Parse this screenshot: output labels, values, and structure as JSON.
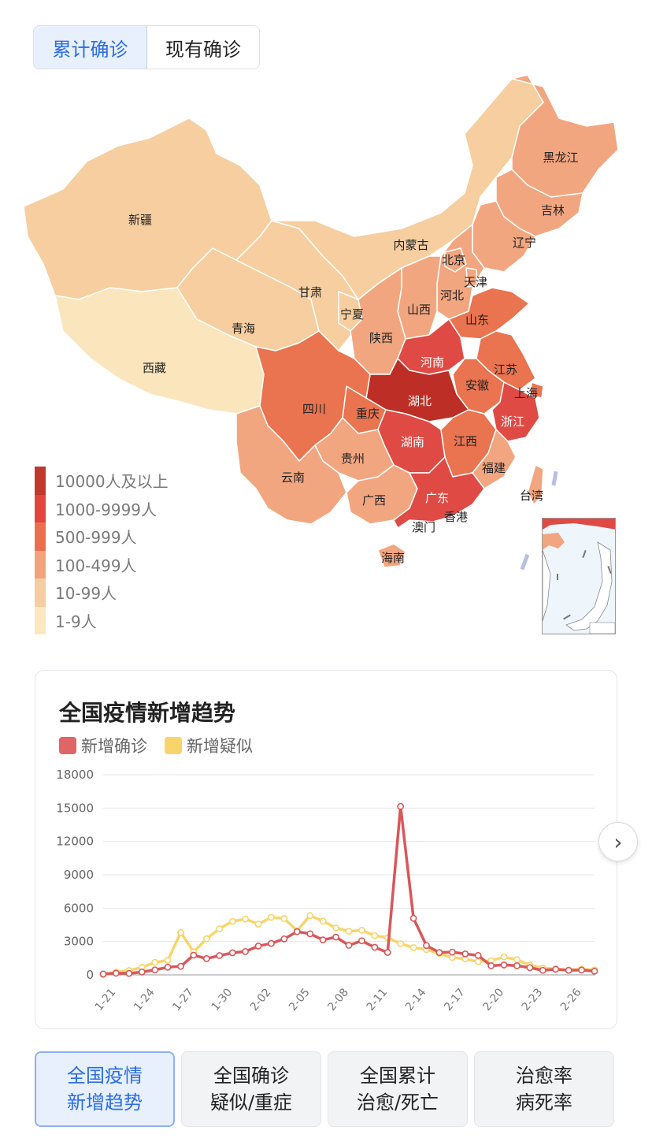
{
  "tabs": [
    {
      "label": "累计确诊",
      "active": true
    },
    {
      "label": "现有确诊",
      "active": false
    }
  ],
  "map": {
    "provinces": {
      "xinjiang": "新疆",
      "xizang": "西藏",
      "qinghai": "青海",
      "gansu": "甘肃",
      "neimenggu": "内蒙古",
      "heilongjiang": "黑龙江",
      "jilin": "吉林",
      "liaoning": "辽宁",
      "beijing": "北京",
      "tianjin": "天津",
      "hebei": "河北",
      "shanxi": "山西",
      "ningxia": "宁夏",
      "shaanxi": "陕西",
      "shandong": "山东",
      "henan": "河南",
      "jiangsu": "江苏",
      "anhui": "安徽",
      "shanghai": "上海",
      "hubei": "湖北",
      "sichuan": "四川",
      "chongqing": "重庆",
      "zhejiang": "浙江",
      "hunan": "湖南",
      "jiangxi": "江西",
      "guizhou": "贵州",
      "yunnan": "云南",
      "fujian": "福建",
      "taiwan": "台湾",
      "guangxi": "广西",
      "guangdong": "广东",
      "xianggang": "香港",
      "aomen": "澳门",
      "hainan": "海南"
    },
    "colors": {
      "c1": "#fbe5bd",
      "c2": "#f6cea0",
      "c3": "#f2a680",
      "c4": "#ea7350",
      "c5": "#e04a45",
      "c6": "#bd2f26"
    },
    "legend": [
      {
        "label": "10000人及以上",
        "color": "#c0392b"
      },
      {
        "label": "1000-9999人",
        "color": "#e2453c"
      },
      {
        "label": "500-999人",
        "color": "#ec6f4d"
      },
      {
        "label": "100-499人",
        "color": "#f2a37c"
      },
      {
        "label": "10-99人",
        "color": "#f6cca1"
      },
      {
        "label": "1-9人",
        "color": "#fce8bf"
      }
    ]
  },
  "card": {
    "title": "全国疫情新增趋势",
    "legend": [
      {
        "label": "新增确诊",
        "color": "#e06666"
      },
      {
        "label": "新增疑似",
        "color": "#f8d56b"
      }
    ]
  },
  "chart_data": {
    "type": "line",
    "title": "全国疫情新增趋势",
    "ylim": [
      0,
      18000
    ],
    "yticks": [
      0,
      3000,
      6000,
      9000,
      12000,
      15000,
      18000
    ],
    "xtick_labels": [
      "1-21",
      "1-24",
      "1-27",
      "1-30",
      "2-02",
      "2-05",
      "2-08",
      "2-11",
      "2-14",
      "2-17",
      "2-20",
      "2-23",
      "2-26"
    ],
    "x": [
      "1-20",
      "1-21",
      "1-22",
      "1-23",
      "1-24",
      "1-25",
      "1-26",
      "1-27",
      "1-28",
      "1-29",
      "1-30",
      "1-31",
      "2-01",
      "2-02",
      "2-03",
      "2-04",
      "2-05",
      "2-06",
      "2-07",
      "2-08",
      "2-09",
      "2-10",
      "2-11",
      "2-12",
      "2-13",
      "2-14",
      "2-15",
      "2-16",
      "2-17",
      "2-18",
      "2-19",
      "2-20",
      "2-21",
      "2-22",
      "2-23",
      "2-24",
      "2-25",
      "2-26",
      "2-27"
    ],
    "series": [
      {
        "name": "新增确诊",
        "color": "#d9575b",
        "values": [
          77,
          149,
          131,
          259,
          444,
          688,
          769,
          1771,
          1459,
          1737,
          1982,
          2102,
          2590,
          2829,
          3235,
          3887,
          3694,
          3143,
          3399,
          2656,
          3062,
          2478,
          2015,
          15152,
          5090,
          2641,
          2009,
          2048,
          1886,
          1749,
          820,
          892,
          826,
          648,
          409,
          508,
          406,
          433,
          327
        ]
      },
      {
        "name": "新增疑似",
        "color": "#f8d56b",
        "values": [
          27,
          257,
          393,
          680,
          1118,
          1309,
          3806,
          2077,
          3248,
          4148,
          4812,
          5019,
          4562,
          5173,
          5072,
          3971,
          5328,
          4833,
          4214,
          3916,
          4008,
          3536,
          3342,
          2807,
          2450,
          2277,
          1918,
          1563,
          1432,
          1185,
          1277,
          1614,
          1361,
          882,
          620,
          530,
          439,
          508,
          452
        ]
      }
    ]
  },
  "bottom_tabs": [
    {
      "line1": "全国疫情",
      "line2": "新增趋势",
      "active": true
    },
    {
      "line1": "全国确诊",
      "line2": "疑似/重症",
      "active": false
    },
    {
      "line1": "全国累计",
      "line2": "治愈/死亡",
      "active": false
    },
    {
      "line1": "治愈率",
      "line2": "病死率",
      "active": false
    }
  ]
}
